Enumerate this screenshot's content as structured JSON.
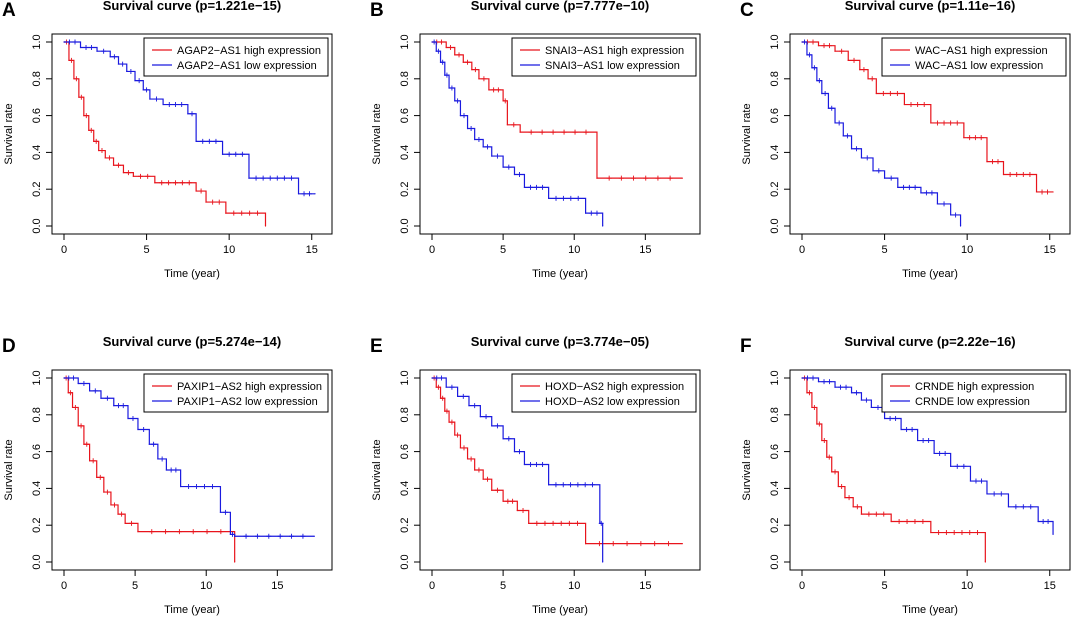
{
  "figure": {
    "x_axis_label": "Time (year)",
    "y_axis_label": "Survival rate",
    "colors": {
      "high": "#e8141c",
      "low": "#1a1adf",
      "axis": "#000000"
    }
  },
  "chart_data": [
    {
      "panel": "A",
      "type": "line",
      "step": true,
      "title": "Survival curve (p=1.221e−15)",
      "xlabel": "Time (year)",
      "ylabel": "Survival rate",
      "xlim": [
        0,
        15.5
      ],
      "ylim": [
        0,
        1
      ],
      "x_ticks": [
        0,
        5,
        10,
        15
      ],
      "y_ticks": [
        "0.0",
        "0.2",
        "0.4",
        "0.6",
        "0.8",
        "1.0"
      ],
      "legend_position": "top-right",
      "series": [
        {
          "name": "AGAP2−AS1 high expression",
          "color": "#e8141c",
          "x": [
            0,
            0.3,
            0.6,
            0.9,
            1.2,
            1.5,
            1.8,
            2.1,
            2.5,
            3.0,
            3.6,
            4.2,
            5.5,
            8.0,
            8.6,
            9.8,
            12.2
          ],
          "y": [
            1.0,
            0.9,
            0.8,
            0.7,
            0.6,
            0.52,
            0.46,
            0.41,
            0.37,
            0.33,
            0.29,
            0.27,
            0.235,
            0.19,
            0.13,
            0.07,
            0.0
          ]
        },
        {
          "name": "AGAP2−AS1 low expression",
          "color": "#1a1adf",
          "x": [
            0,
            1.0,
            2.0,
            2.8,
            3.3,
            3.8,
            4.3,
            4.8,
            5.2,
            6.0,
            7.5,
            8.0,
            9.6,
            11.2,
            14.2,
            15.2
          ],
          "y": [
            1.0,
            0.97,
            0.95,
            0.92,
            0.88,
            0.84,
            0.79,
            0.74,
            0.69,
            0.66,
            0.61,
            0.46,
            0.39,
            0.26,
            0.175,
            0.175
          ]
        }
      ]
    },
    {
      "panel": "B",
      "type": "line",
      "step": true,
      "title": "Survival curve (p=7.777e−10)",
      "xlabel": "Time (year)",
      "ylabel": "Survival rate",
      "xlim": [
        0,
        18
      ],
      "ylim": [
        0,
        1
      ],
      "x_ticks": [
        0,
        5,
        10,
        15
      ],
      "y_ticks": [
        "0.0",
        "0.2",
        "0.4",
        "0.6",
        "0.8",
        "1.0"
      ],
      "legend_position": "top-right",
      "series": [
        {
          "name": "SNAI3−AS1 high expression",
          "color": "#e8141c",
          "x": [
            0,
            1.0,
            1.6,
            2.2,
            2.8,
            3.3,
            4.0,
            5.0,
            5.3,
            6.2,
            11.6,
            17.6
          ],
          "y": [
            1.0,
            0.97,
            0.93,
            0.89,
            0.85,
            0.8,
            0.74,
            0.68,
            0.55,
            0.51,
            0.26,
            0.26
          ]
        },
        {
          "name": "SNAI3−AS1 low expression",
          "color": "#1a1adf",
          "x": [
            0,
            0.3,
            0.6,
            0.9,
            1.2,
            1.6,
            2.0,
            2.5,
            3.0,
            3.6,
            4.2,
            5.0,
            5.8,
            6.5,
            8.2,
            10.8,
            12.0
          ],
          "y": [
            1.0,
            0.95,
            0.89,
            0.82,
            0.75,
            0.68,
            0.6,
            0.53,
            0.47,
            0.43,
            0.38,
            0.32,
            0.28,
            0.21,
            0.15,
            0.07,
            0.0
          ]
        }
      ]
    },
    {
      "panel": "C",
      "type": "line",
      "step": true,
      "title": "Survival curve (p=1.11e−16)",
      "xlabel": "Time (year)",
      "ylabel": "Survival rate",
      "xlim": [
        0,
        15.5
      ],
      "ylim": [
        0,
        1
      ],
      "x_ticks": [
        0,
        5,
        10,
        15
      ],
      "y_ticks": [
        "0.0",
        "0.2",
        "0.4",
        "0.6",
        "0.8",
        "1.0"
      ],
      "legend_position": "top-right",
      "series": [
        {
          "name": "WAC−AS1 high expression",
          "color": "#e8141c",
          "x": [
            0,
            1.0,
            2.0,
            2.8,
            3.5,
            4.0,
            4.5,
            6.2,
            7.8,
            9.8,
            11.2,
            12.2,
            14.2,
            15.2
          ],
          "y": [
            1.0,
            0.98,
            0.95,
            0.9,
            0.85,
            0.8,
            0.72,
            0.66,
            0.56,
            0.48,
            0.35,
            0.28,
            0.185,
            0.185
          ]
        },
        {
          "name": "WAC−AS1 low expression",
          "color": "#1a1adf",
          "x": [
            0,
            0.3,
            0.6,
            0.9,
            1.2,
            1.6,
            2.0,
            2.5,
            3.0,
            3.6,
            4.3,
            5.0,
            5.8,
            7.2,
            8.2,
            9.0,
            9.6
          ],
          "y": [
            1.0,
            0.93,
            0.86,
            0.79,
            0.72,
            0.64,
            0.56,
            0.49,
            0.42,
            0.37,
            0.3,
            0.26,
            0.21,
            0.18,
            0.12,
            0.06,
            0.0
          ]
        }
      ]
    },
    {
      "panel": "D",
      "type": "line",
      "step": true,
      "title": "Survival curve (p=5.274e−14)",
      "xlabel": "Time (year)",
      "ylabel": "Survival rate",
      "xlim": [
        0,
        18
      ],
      "ylim": [
        0,
        1
      ],
      "x_ticks": [
        0,
        5,
        10,
        15
      ],
      "y_ticks": [
        "0.0",
        "0.2",
        "0.4",
        "0.6",
        "0.8",
        "1.0"
      ],
      "legend_position": "top-right",
      "series": [
        {
          "name": "PAXIP1−AS2 high expression",
          "color": "#e8141c",
          "x": [
            0,
            0.3,
            0.6,
            1.0,
            1.4,
            1.8,
            2.3,
            2.8,
            3.3,
            3.8,
            4.3,
            5.2,
            12.0
          ],
          "y": [
            1.0,
            0.92,
            0.84,
            0.74,
            0.64,
            0.55,
            0.46,
            0.38,
            0.31,
            0.26,
            0.21,
            0.165,
            0.0
          ]
        },
        {
          "name": "PAXIP1−AS2 low expression",
          "color": "#1a1adf",
          "x": [
            0,
            1.0,
            1.8,
            2.6,
            3.5,
            4.5,
            5.2,
            6.0,
            6.6,
            7.2,
            8.2,
            11.0,
            11.7,
            12.0,
            17.6
          ],
          "y": [
            1.0,
            0.97,
            0.93,
            0.89,
            0.85,
            0.78,
            0.72,
            0.64,
            0.56,
            0.5,
            0.41,
            0.27,
            0.15,
            0.14,
            0.14
          ]
        }
      ]
    },
    {
      "panel": "E",
      "type": "line",
      "step": true,
      "title": "Survival curve (p=3.774e−05)",
      "xlabel": "Time (year)",
      "ylabel": "Survival rate",
      "xlim": [
        0,
        18
      ],
      "ylim": [
        0,
        1
      ],
      "x_ticks": [
        0,
        5,
        10,
        15
      ],
      "y_ticks": [
        "0.0",
        "0.2",
        "0.4",
        "0.6",
        "0.8",
        "1.0"
      ],
      "legend_position": "top-right",
      "series": [
        {
          "name": "HOXD−AS2 high expression",
          "color": "#e8141c",
          "x": [
            0,
            0.3,
            0.6,
            0.9,
            1.2,
            1.6,
            2.0,
            2.5,
            3.0,
            3.6,
            4.2,
            5.0,
            6.0,
            6.8,
            10.8,
            17.6
          ],
          "y": [
            1.0,
            0.95,
            0.89,
            0.82,
            0.76,
            0.69,
            0.62,
            0.56,
            0.5,
            0.45,
            0.39,
            0.33,
            0.28,
            0.21,
            0.1,
            0.1
          ]
        },
        {
          "name": "HOXD−AS2 low expression",
          "color": "#1a1adf",
          "x": [
            0,
            1.0,
            1.8,
            2.6,
            3.4,
            4.2,
            5.0,
            5.8,
            6.5,
            8.2,
            11.8,
            12.0
          ],
          "y": [
            1.0,
            0.95,
            0.9,
            0.85,
            0.79,
            0.74,
            0.67,
            0.6,
            0.53,
            0.42,
            0.21,
            0.0
          ]
        }
      ]
    },
    {
      "panel": "F",
      "type": "line",
      "step": true,
      "title": "Survival curve (p=2.22e−16)",
      "xlabel": "Time (year)",
      "ylabel": "Survival rate",
      "xlim": [
        0,
        15.5
      ],
      "ylim": [
        0,
        1
      ],
      "x_ticks": [
        0,
        5,
        10,
        15
      ],
      "y_ticks": [
        "0.0",
        "0.2",
        "0.4",
        "0.6",
        "0.8",
        "1.0"
      ],
      "legend_position": "top-right",
      "series": [
        {
          "name": "CRNDE high expression",
          "color": "#e8141c",
          "x": [
            0,
            0.3,
            0.6,
            0.9,
            1.2,
            1.5,
            1.8,
            2.2,
            2.6,
            3.1,
            3.6,
            5.4,
            7.8,
            11.1
          ],
          "y": [
            1.0,
            0.92,
            0.84,
            0.75,
            0.66,
            0.57,
            0.49,
            0.41,
            0.35,
            0.3,
            0.26,
            0.22,
            0.16,
            0.0
          ]
        },
        {
          "name": "CRNDE low expression",
          "color": "#1a1adf",
          "x": [
            0,
            1.0,
            2.0,
            3.0,
            3.6,
            4.2,
            5.0,
            6.0,
            7.0,
            8.0,
            9.0,
            10.2,
            11.2,
            12.5,
            14.3,
            15.2
          ],
          "y": [
            1.0,
            0.98,
            0.95,
            0.92,
            0.88,
            0.84,
            0.78,
            0.72,
            0.66,
            0.59,
            0.52,
            0.44,
            0.37,
            0.3,
            0.22,
            0.15
          ]
        }
      ]
    }
  ]
}
